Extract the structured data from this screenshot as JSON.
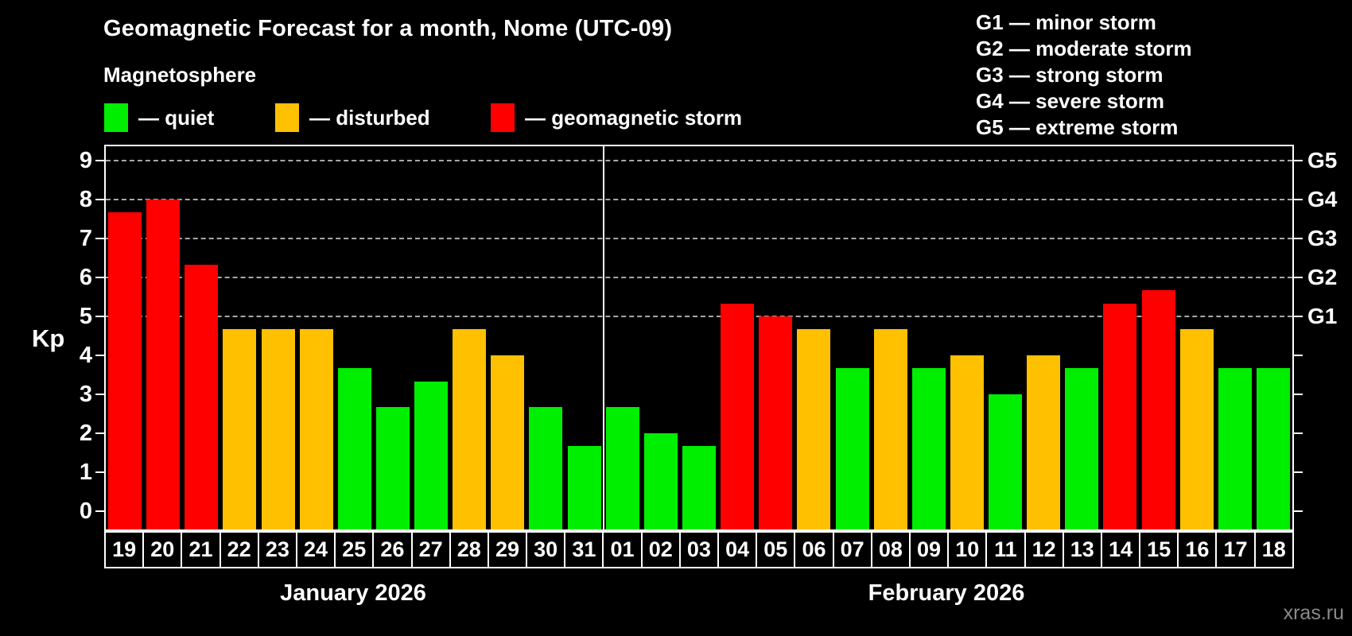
{
  "title": "Geomagnetic Forecast for a month, Nome (UTC-09)",
  "subtitle": "Magnetosphere",
  "legend": {
    "items": [
      {
        "key": "quiet",
        "label": "— quiet",
        "color": "#00EE00"
      },
      {
        "key": "disturbed",
        "label": "— disturbed",
        "color": "#FFC000"
      },
      {
        "key": "storm",
        "label": "— geomagnetic storm",
        "color": "#FF0000"
      }
    ]
  },
  "g_legend": {
    "lines": [
      "G1 — minor storm",
      "G2 — moderate storm",
      "G3 — strong storm",
      "G4 — severe storm",
      "G5 — extreme storm"
    ]
  },
  "axes": {
    "left_label": "Kp",
    "left_ticks": [
      0,
      1,
      2,
      3,
      4,
      5,
      6,
      7,
      8,
      9
    ],
    "right_labels": [
      {
        "value": 5,
        "label": "G1"
      },
      {
        "value": 6,
        "label": "G2"
      },
      {
        "value": 7,
        "label": "G3"
      },
      {
        "value": 8,
        "label": "G4"
      },
      {
        "value": 9,
        "label": "G5"
      }
    ]
  },
  "watermark": "xras.ru",
  "colors": {
    "background": "#000000",
    "axis": "#FFFFFF",
    "grid": "#A8A8A8",
    "quiet": "#00EE00",
    "disturbed": "#FFC000",
    "storm": "#FF0000",
    "watermark": "#8A8A8A"
  },
  "chart_data": {
    "type": "bar",
    "title": "Geomagnetic Forecast for a month, Nome (UTC-09)",
    "xlabel": "",
    "ylabel": "Kp",
    "ylim": [
      0,
      9
    ],
    "gridlines_at": [
      5,
      6,
      7,
      8,
      9
    ],
    "grid": "dashed horizontal at G-storm levels only",
    "legend_position": "top-left",
    "months": [
      {
        "label": "January 2026",
        "days": [
          {
            "date": "19",
            "kp": 7.67,
            "level": "storm"
          },
          {
            "date": "20",
            "kp": 8.0,
            "level": "storm"
          },
          {
            "date": "21",
            "kp": 6.33,
            "level": "storm"
          },
          {
            "date": "22",
            "kp": 4.67,
            "level": "disturbed"
          },
          {
            "date": "23",
            "kp": 4.67,
            "level": "disturbed"
          },
          {
            "date": "24",
            "kp": 4.67,
            "level": "disturbed"
          },
          {
            "date": "25",
            "kp": 3.67,
            "level": "quiet"
          },
          {
            "date": "26",
            "kp": 2.67,
            "level": "quiet"
          },
          {
            "date": "27",
            "kp": 3.33,
            "level": "quiet"
          },
          {
            "date": "28",
            "kp": 4.67,
            "level": "disturbed"
          },
          {
            "date": "29",
            "kp": 4.0,
            "level": "disturbed"
          },
          {
            "date": "30",
            "kp": 2.67,
            "level": "quiet"
          },
          {
            "date": "31",
            "kp": 1.67,
            "level": "quiet"
          }
        ]
      },
      {
        "label": "February 2026",
        "days": [
          {
            "date": "01",
            "kp": 2.67,
            "level": "quiet"
          },
          {
            "date": "02",
            "kp": 2.0,
            "level": "quiet"
          },
          {
            "date": "03",
            "kp": 1.67,
            "level": "quiet"
          },
          {
            "date": "04",
            "kp": 5.33,
            "level": "storm"
          },
          {
            "date": "05",
            "kp": 5.0,
            "level": "storm"
          },
          {
            "date": "06",
            "kp": 4.67,
            "level": "disturbed"
          },
          {
            "date": "07",
            "kp": 3.67,
            "level": "quiet"
          },
          {
            "date": "08",
            "kp": 4.67,
            "level": "disturbed"
          },
          {
            "date": "09",
            "kp": 3.67,
            "level": "quiet"
          },
          {
            "date": "10",
            "kp": 4.0,
            "level": "disturbed"
          },
          {
            "date": "11",
            "kp": 3.0,
            "level": "quiet"
          },
          {
            "date": "12",
            "kp": 4.0,
            "level": "disturbed"
          },
          {
            "date": "13",
            "kp": 3.67,
            "level": "quiet"
          },
          {
            "date": "14",
            "kp": 5.33,
            "level": "storm"
          },
          {
            "date": "15",
            "kp": 5.67,
            "level": "storm"
          },
          {
            "date": "16",
            "kp": 4.67,
            "level": "disturbed"
          },
          {
            "date": "17",
            "kp": 3.67,
            "level": "quiet"
          },
          {
            "date": "18",
            "kp": 3.67,
            "level": "quiet"
          }
        ]
      }
    ]
  }
}
